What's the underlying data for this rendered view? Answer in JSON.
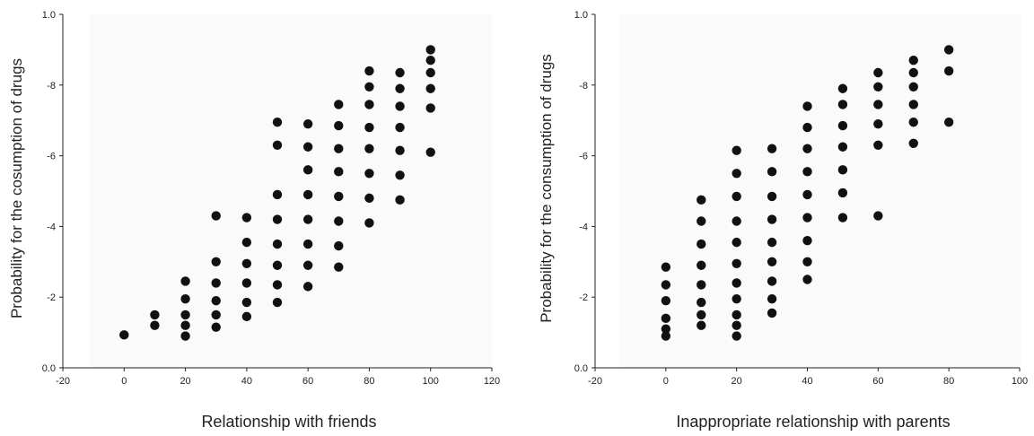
{
  "chart_data": [
    {
      "type": "scatter",
      "title": "",
      "xlabel": "Relationship with friends",
      "ylabel": "Probability for the cosumption of drugs",
      "xlim": [
        -20,
        120
      ],
      "ylim": [
        0,
        1
      ],
      "xticks": [
        "-20",
        "0",
        "20",
        "40",
        "60",
        "80",
        "100",
        "120"
      ],
      "yticks": [
        "0.0",
        "-2",
        "-4",
        "-6",
        "-8",
        "1.0"
      ],
      "grid": false,
      "series": [
        {
          "points": [
            [
              0,
              0.093
            ],
            [
              10,
              0.12
            ],
            [
              10,
              0.15
            ],
            [
              20,
              0.09
            ],
            [
              20,
              0.12
            ],
            [
              20,
              0.15
            ],
            [
              20,
              0.195
            ],
            [
              20,
              0.245
            ],
            [
              30,
              0.115
            ],
            [
              30,
              0.15
            ],
            [
              30,
              0.19
            ],
            [
              30,
              0.24
            ],
            [
              30,
              0.3
            ],
            [
              30,
              0.43
            ],
            [
              40,
              0.145
            ],
            [
              40,
              0.185
            ],
            [
              40,
              0.24
            ],
            [
              40,
              0.295
            ],
            [
              40,
              0.355
            ],
            [
              40,
              0.425
            ],
            [
              50,
              0.185
            ],
            [
              50,
              0.235
            ],
            [
              50,
              0.29
            ],
            [
              50,
              0.35
            ],
            [
              50,
              0.42
            ],
            [
              50,
              0.49
            ],
            [
              50,
              0.63
            ],
            [
              50,
              0.695
            ],
            [
              60,
              0.23
            ],
            [
              60,
              0.29
            ],
            [
              60,
              0.35
            ],
            [
              60,
              0.42
            ],
            [
              60,
              0.49
            ],
            [
              60,
              0.56
            ],
            [
              60,
              0.625
            ],
            [
              60,
              0.69
            ],
            [
              70,
              0.285
            ],
            [
              70,
              0.345
            ],
            [
              70,
              0.415
            ],
            [
              70,
              0.485
            ],
            [
              70,
              0.555
            ],
            [
              70,
              0.62
            ],
            [
              70,
              0.685
            ],
            [
              70,
              0.745
            ],
            [
              80,
              0.41
            ],
            [
              80,
              0.48
            ],
            [
              80,
              0.55
            ],
            [
              80,
              0.62
            ],
            [
              80,
              0.68
            ],
            [
              80,
              0.745
            ],
            [
              80,
              0.795
            ],
            [
              80,
              0.84
            ],
            [
              90,
              0.475
            ],
            [
              90,
              0.545
            ],
            [
              90,
              0.615
            ],
            [
              90,
              0.68
            ],
            [
              90,
              0.74
            ],
            [
              90,
              0.79
            ],
            [
              90,
              0.835
            ],
            [
              100,
              0.61
            ],
            [
              100,
              0.735
            ],
            [
              100,
              0.79
            ],
            [
              100,
              0.835
            ],
            [
              100,
              0.87
            ],
            [
              100,
              0.9
            ]
          ]
        }
      ]
    },
    {
      "type": "scatter",
      "title": "",
      "xlabel": "Inappropriate relationship with parents",
      "ylabel": "Probability for the consumption of drugs",
      "xlim": [
        -20,
        100
      ],
      "ylim": [
        0,
        1
      ],
      "xticks": [
        "-20",
        "0",
        "20",
        "40",
        "60",
        "80",
        "100"
      ],
      "yticks": [
        "0.0",
        "-2",
        "-4",
        "-6",
        "-8",
        "1.0"
      ],
      "grid": false,
      "series": [
        {
          "points": [
            [
              0,
              0.09
            ],
            [
              0,
              0.11
            ],
            [
              0,
              0.14
            ],
            [
              0,
              0.19
            ],
            [
              0,
              0.235
            ],
            [
              0,
              0.285
            ],
            [
              10,
              0.12
            ],
            [
              10,
              0.15
            ],
            [
              10,
              0.185
            ],
            [
              10,
              0.235
            ],
            [
              10,
              0.29
            ],
            [
              10,
              0.35
            ],
            [
              10,
              0.415
            ],
            [
              10,
              0.475
            ],
            [
              20,
              0.09
            ],
            [
              20,
              0.12
            ],
            [
              20,
              0.15
            ],
            [
              20,
              0.195
            ],
            [
              20,
              0.24
            ],
            [
              20,
              0.295
            ],
            [
              20,
              0.355
            ],
            [
              20,
              0.415
            ],
            [
              20,
              0.485
            ],
            [
              20,
              0.55
            ],
            [
              20,
              0.615
            ],
            [
              30,
              0.155
            ],
            [
              30,
              0.195
            ],
            [
              30,
              0.245
            ],
            [
              30,
              0.3
            ],
            [
              30,
              0.355
            ],
            [
              30,
              0.42
            ],
            [
              30,
              0.485
            ],
            [
              30,
              0.555
            ],
            [
              30,
              0.62
            ],
            [
              40,
              0.25
            ],
            [
              40,
              0.3
            ],
            [
              40,
              0.36
            ],
            [
              40,
              0.425
            ],
            [
              40,
              0.49
            ],
            [
              40,
              0.555
            ],
            [
              40,
              0.62
            ],
            [
              40,
              0.68
            ],
            [
              40,
              0.74
            ],
            [
              50,
              0.425
            ],
            [
              50,
              0.495
            ],
            [
              50,
              0.56
            ],
            [
              50,
              0.625
            ],
            [
              50,
              0.685
            ],
            [
              50,
              0.745
            ],
            [
              50,
              0.79
            ],
            [
              60,
              0.43
            ],
            [
              60,
              0.63
            ],
            [
              60,
              0.69
            ],
            [
              60,
              0.745
            ],
            [
              60,
              0.795
            ],
            [
              60,
              0.835
            ],
            [
              70,
              0.635
            ],
            [
              70,
              0.695
            ],
            [
              70,
              0.745
            ],
            [
              70,
              0.795
            ],
            [
              70,
              0.835
            ],
            [
              70,
              0.87
            ],
            [
              80,
              0.695
            ],
            [
              80,
              0.84
            ],
            [
              80,
              0.9
            ]
          ]
        }
      ]
    }
  ]
}
